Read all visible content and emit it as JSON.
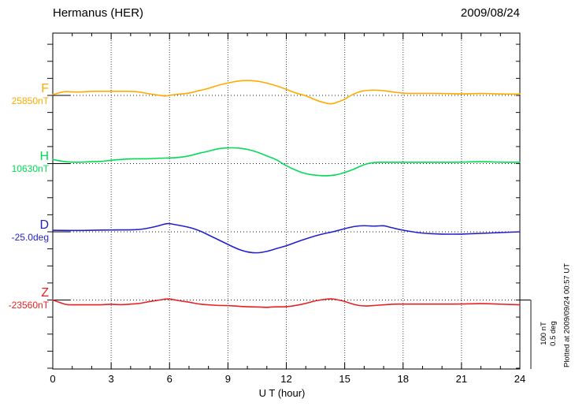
{
  "header": {
    "station": "Hermanus (HER)",
    "date": "2009/08/24"
  },
  "side_note": "Plotted at 2009/09/24 00:57 UT",
  "scale_bar": {
    "label_nT": "100 nT",
    "label_deg": "0.5 deg",
    "nT": 100,
    "deg": 0.5
  },
  "xaxis": {
    "label": "U T (hour)",
    "major_ticks": [
      0,
      3,
      6,
      9,
      12,
      15,
      18,
      21,
      24
    ],
    "minor_step_hours": 1,
    "range_hours": [
      0,
      24
    ]
  },
  "chart_data": {
    "type": "line",
    "title": "Hermanus (HER)",
    "subtitle": "2009/08/24",
    "xlabel": "U T (hour)",
    "x_range": [
      0,
      24
    ],
    "grid": "dotted vertical gridlines every 3 h; dotted horizontal baseline per trace",
    "legend_position": "left margin, one colored label per trace",
    "scale_bar": {
      "nT": 100,
      "deg": 0.5
    },
    "note": "points are [UT hour, deviation from base_value in unit]",
    "series": [
      {
        "name": "F",
        "unit": "nT",
        "base_label": "25850nT",
        "base_value": 25850,
        "color": "#FFAA00",
        "points": [
          [
            0,
            1
          ],
          [
            0.5,
            6
          ],
          [
            1,
            5
          ],
          [
            1.5,
            5
          ],
          [
            2,
            6
          ],
          [
            2.5,
            6
          ],
          [
            3,
            6
          ],
          [
            3.5,
            6
          ],
          [
            4,
            6
          ],
          [
            4.5,
            5
          ],
          [
            5,
            2
          ],
          [
            5.5,
            0
          ],
          [
            5.8,
            -1
          ],
          [
            6,
            0
          ],
          [
            6.5,
            2
          ],
          [
            7,
            3
          ],
          [
            7.5,
            7
          ],
          [
            8,
            10
          ],
          [
            8.5,
            15
          ],
          [
            9,
            18
          ],
          [
            9.5,
            21
          ],
          [
            10,
            22
          ],
          [
            10.5,
            21
          ],
          [
            11,
            18
          ],
          [
            11.5,
            14
          ],
          [
            12,
            9
          ],
          [
            12.5,
            3
          ],
          [
            13,
            0
          ],
          [
            13.5,
            -7
          ],
          [
            14,
            -11
          ],
          [
            14.3,
            -13
          ],
          [
            14.7,
            -9
          ],
          [
            15,
            -6
          ],
          [
            15.3,
            0
          ],
          [
            15.7,
            5
          ],
          [
            16,
            7
          ],
          [
            16.5,
            8
          ],
          [
            17,
            7
          ],
          [
            17.5,
            5
          ],
          [
            18,
            3
          ],
          [
            19,
            3
          ],
          [
            20,
            3
          ],
          [
            21,
            2
          ],
          [
            22,
            3
          ],
          [
            23,
            2
          ],
          [
            24,
            2
          ]
        ]
      },
      {
        "name": "H",
        "unit": "nT",
        "base_label": "10630nT",
        "base_value": 10630,
        "color": "#00DD55",
        "points": [
          [
            0,
            6
          ],
          [
            0.5,
            3
          ],
          [
            1,
            2
          ],
          [
            1.5,
            2
          ],
          [
            2,
            3
          ],
          [
            2.5,
            3
          ],
          [
            3,
            5
          ],
          [
            3.5,
            6
          ],
          [
            4,
            7
          ],
          [
            4.5,
            7
          ],
          [
            5,
            7
          ],
          [
            5.5,
            8
          ],
          [
            6,
            8
          ],
          [
            6.5,
            9
          ],
          [
            7,
            11
          ],
          [
            7.5,
            15
          ],
          [
            8,
            18
          ],
          [
            8.5,
            22
          ],
          [
            9,
            23
          ],
          [
            9.5,
            23
          ],
          [
            10,
            21
          ],
          [
            10.5,
            17
          ],
          [
            11,
            11
          ],
          [
            11.5,
            6
          ],
          [
            11.8,
            0
          ],
          [
            12,
            -3
          ],
          [
            12.5,
            -10
          ],
          [
            13,
            -15
          ],
          [
            13.5,
            -17
          ],
          [
            14,
            -18
          ],
          [
            14.5,
            -17
          ],
          [
            15,
            -13
          ],
          [
            15.5,
            -8
          ],
          [
            16,
            -1
          ],
          [
            16.5,
            2
          ],
          [
            17,
            2
          ],
          [
            18,
            2
          ],
          [
            19,
            2
          ],
          [
            20,
            2
          ],
          [
            21,
            2
          ],
          [
            22,
            3
          ],
          [
            23,
            2
          ],
          [
            24,
            2
          ]
        ]
      },
      {
        "name": "D",
        "unit": "deg",
        "base_label": "-25.0deg",
        "base_value": -25.0,
        "color": "#2222CC",
        "points": [
          [
            0,
            0.011
          ],
          [
            1,
            0.009
          ],
          [
            2,
            0.011
          ],
          [
            3,
            0.014
          ],
          [
            4,
            0.014
          ],
          [
            4.5,
            0.017
          ],
          [
            5,
            0.029
          ],
          [
            5.5,
            0.046
          ],
          [
            5.9,
            0.063
          ],
          [
            6.3,
            0.052
          ],
          [
            7,
            0.034
          ],
          [
            7.5,
            0.011
          ],
          [
            8,
            -0.023
          ],
          [
            8.5,
            -0.057
          ],
          [
            9,
            -0.092
          ],
          [
            9.5,
            -0.126
          ],
          [
            10,
            -0.149
          ],
          [
            10.5,
            -0.155
          ],
          [
            11,
            -0.144
          ],
          [
            11.5,
            -0.121
          ],
          [
            12,
            -0.103
          ],
          [
            12.5,
            -0.075
          ],
          [
            13,
            -0.052
          ],
          [
            13.5,
            -0.029
          ],
          [
            14,
            -0.011
          ],
          [
            14.4,
            0
          ],
          [
            15,
            0.023
          ],
          [
            15.5,
            0.04
          ],
          [
            16,
            0.046
          ],
          [
            16.5,
            0.04
          ],
          [
            17,
            0.046
          ],
          [
            17.3,
            0.034
          ],
          [
            18,
            0.011
          ],
          [
            18.5,
            0
          ],
          [
            19,
            -0.011
          ],
          [
            20,
            -0.017
          ],
          [
            21,
            -0.017
          ],
          [
            22,
            -0.011
          ],
          [
            23,
            -0.006
          ],
          [
            24,
            0
          ]
        ]
      },
      {
        "name": "Z",
        "unit": "nT",
        "base_label": "-23560nT",
        "base_value": -23560,
        "color": "#E62222",
        "points": [
          [
            0,
            0
          ],
          [
            0.3,
            -3
          ],
          [
            0.7,
            -7
          ],
          [
            1,
            -7
          ],
          [
            1.5,
            -7
          ],
          [
            2,
            -7
          ],
          [
            2.5,
            -7
          ],
          [
            3,
            -6
          ],
          [
            3.5,
            -7
          ],
          [
            4,
            -6
          ],
          [
            4.5,
            -5
          ],
          [
            5,
            -2
          ],
          [
            5.5,
            0
          ],
          [
            5.9,
            2
          ],
          [
            6.3,
            0
          ],
          [
            6.7,
            -2
          ],
          [
            7,
            -3
          ],
          [
            7.5,
            -6
          ],
          [
            8,
            -7
          ],
          [
            8.5,
            -8
          ],
          [
            9,
            -8
          ],
          [
            9.5,
            -9
          ],
          [
            10,
            -10
          ],
          [
            10.5,
            -10
          ],
          [
            11,
            -11
          ],
          [
            11.3,
            -10
          ],
          [
            11.6,
            -10
          ],
          [
            12,
            -10
          ],
          [
            12.5,
            -8
          ],
          [
            13,
            -5
          ],
          [
            13.5,
            -1
          ],
          [
            14,
            1
          ],
          [
            14.3,
            2
          ],
          [
            14.7,
            0
          ],
          [
            15,
            -2
          ],
          [
            15.5,
            -7
          ],
          [
            16,
            -9
          ],
          [
            16.5,
            -8
          ],
          [
            17,
            -7
          ],
          [
            17.5,
            -6
          ],
          [
            18,
            -6
          ],
          [
            19,
            -6
          ],
          [
            20,
            -6
          ],
          [
            21,
            -6
          ],
          [
            22,
            -5
          ],
          [
            23,
            -6
          ],
          [
            24,
            -7
          ]
        ]
      }
    ]
  }
}
